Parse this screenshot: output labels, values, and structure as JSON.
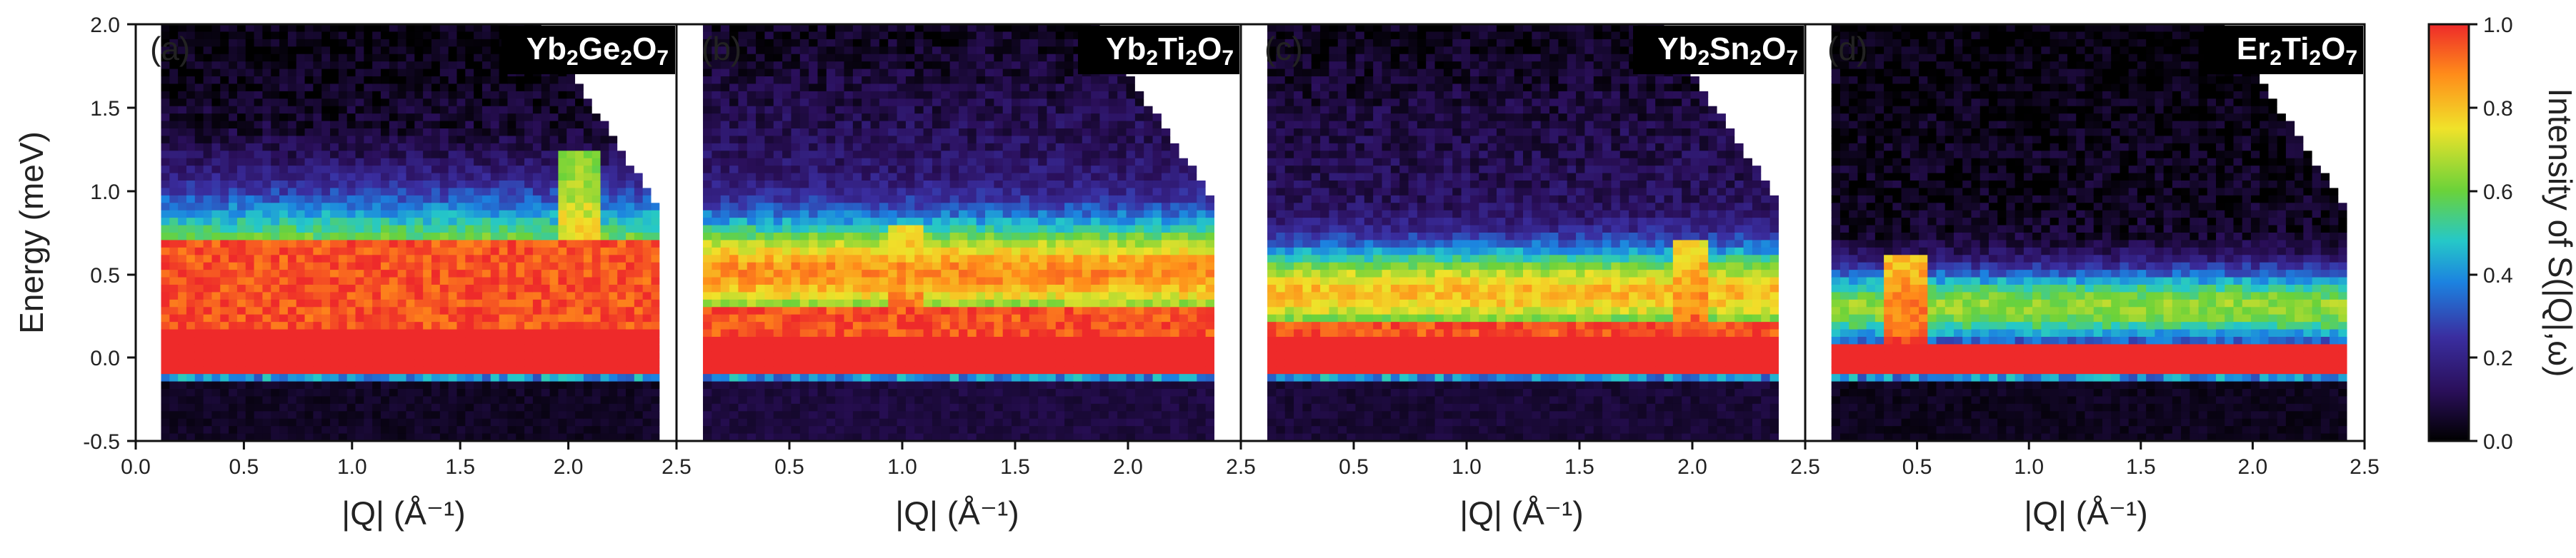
{
  "figure": {
    "y_axis_title": "Energy (meV)",
    "x_axis_title": "|Q| (Å⁻¹)",
    "colorbar_title": "Intensity of S(|Q|,ω)"
  },
  "chart_data": [
    {
      "type": "heatmap",
      "panel_label": "(a)",
      "title": "Yb2Ge2O7",
      "title_parts": [
        {
          "t": "Yb",
          "sub": false
        },
        {
          "t": "2",
          "sub": true
        },
        {
          "t": "Ge",
          "sub": false
        },
        {
          "t": "2",
          "sub": true
        },
        {
          "t": "O",
          "sub": false
        },
        {
          "t": "7",
          "sub": true
        }
      ],
      "xlabel": "|Q| (Å⁻¹)",
      "ylabel": "Energy (meV)",
      "xlim": [
        0.0,
        2.5
      ],
      "ylim": [
        -0.5,
        2.0
      ],
      "x_ticks": [
        0.0,
        0.5,
        1.0,
        1.5,
        2.0,
        2.5
      ],
      "x_tick_labels": [
        "0.0",
        "0.5",
        "1.0",
        "1.5",
        "2.0",
        "2.5"
      ],
      "y_ticks": [
        -0.5,
        0.0,
        0.5,
        1.0,
        1.5,
        2.0
      ],
      "y_tick_labels": [
        "-0.5",
        "0.0",
        "0.5",
        "1.0",
        "1.5",
        "2.0"
      ],
      "q_min": 0.12,
      "q_max": 2.42,
      "elastic_top": 0.15,
      "inelastic_top": 0.72,
      "feature_center": 0.45,
      "feature_width": 0.5,
      "feature_amp": 0.72,
      "bright_q": 2.05,
      "background": 0.06
    },
    {
      "type": "heatmap",
      "panel_label": "(b)",
      "title": "Yb2Ti2O7",
      "title_parts": [
        {
          "t": "Yb",
          "sub": false
        },
        {
          "t": "2",
          "sub": true
        },
        {
          "t": "Ti",
          "sub": false
        },
        {
          "t": "2",
          "sub": true
        },
        {
          "t": "O",
          "sub": false
        },
        {
          "t": "7",
          "sub": true
        }
      ],
      "xlabel": "|Q| (Å⁻¹)",
      "xlim": [
        0.0,
        2.5
      ],
      "ylim": [
        -0.5,
        2.0
      ],
      "x_ticks": [
        0.5,
        1.0,
        1.5,
        2.0,
        2.5
      ],
      "x_tick_labels": [
        "0.5",
        "1.0",
        "1.5",
        "2.0",
        "2.5"
      ],
      "q_min": 0.1,
      "q_max": 2.4,
      "elastic_top": 0.12,
      "inelastic_top": 0.3,
      "feature_center": 0.5,
      "feature_width": 0.32,
      "feature_amp": 0.75,
      "bright_q": 1.0,
      "background": 0.15
    },
    {
      "type": "heatmap",
      "panel_label": "(c)",
      "title": "Yb2Sn2O7",
      "title_parts": [
        {
          "t": "Yb",
          "sub": false
        },
        {
          "t": "2",
          "sub": true
        },
        {
          "t": "Sn",
          "sub": false
        },
        {
          "t": "2",
          "sub": true
        },
        {
          "t": "O",
          "sub": false
        },
        {
          "t": "7",
          "sub": true
        }
      ],
      "xlabel": "|Q| (Å⁻¹)",
      "xlim": [
        0.0,
        2.5
      ],
      "ylim": [
        -0.5,
        2.0
      ],
      "x_ticks": [
        0.5,
        1.0,
        1.5,
        2.0,
        2.5
      ],
      "x_tick_labels": [
        "0.5",
        "1.0",
        "1.5",
        "2.0",
        "2.5"
      ],
      "q_min": 0.1,
      "q_max": 2.4,
      "elastic_top": 0.12,
      "inelastic_top": 0.22,
      "feature_center": 0.38,
      "feature_width": 0.28,
      "feature_amp": 0.72,
      "bright_q": 2.0,
      "background": 0.12
    },
    {
      "type": "heatmap",
      "panel_label": "(d)",
      "title": "Er2Ti2O7",
      "title_parts": [
        {
          "t": "Er",
          "sub": false
        },
        {
          "t": "2",
          "sub": true
        },
        {
          "t": "Ti",
          "sub": false
        },
        {
          "t": "2",
          "sub": true
        },
        {
          "t": "O",
          "sub": false
        },
        {
          "t": "7",
          "sub": true
        }
      ],
      "xlabel": "|Q| (Å⁻¹)",
      "xlim": [
        0.0,
        2.5
      ],
      "ylim": [
        -0.5,
        2.0
      ],
      "x_ticks": [
        0.5,
        1.0,
        1.5,
        2.0,
        2.5
      ],
      "x_tick_labels": [
        "0.5",
        "1.0",
        "1.5",
        "2.0",
        "2.5"
      ],
      "q_min": 0.1,
      "q_max": 2.42,
      "elastic_top": 0.08,
      "inelastic_top": 0.1,
      "feature_center": 0.3,
      "feature_width": 0.24,
      "feature_amp": 0.62,
      "bright_q": 0.45,
      "background": 0.04
    }
  ],
  "colorbar": {
    "range": [
      0.0,
      1.0
    ],
    "ticks": [
      "0.0",
      "0.2",
      "0.4",
      "0.6",
      "0.8",
      "1.0"
    ],
    "colors": [
      "#000000",
      "#2a0f5a",
      "#3a2ea0",
      "#1c82e0",
      "#25c8c8",
      "#6ad23a",
      "#f0e22a",
      "#ff8c1a",
      "#ee2a2a"
    ]
  }
}
